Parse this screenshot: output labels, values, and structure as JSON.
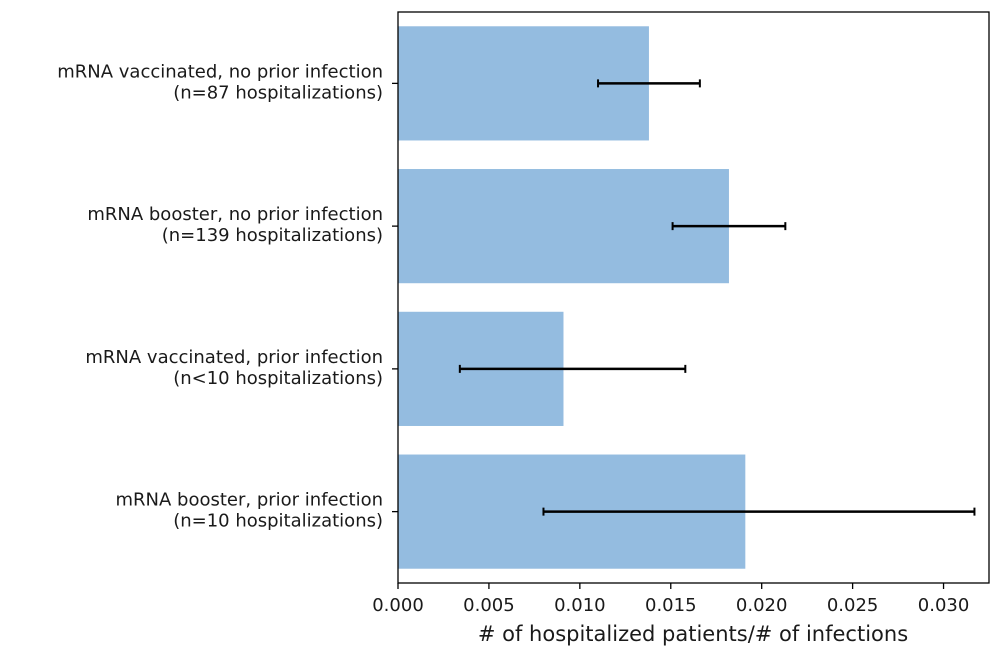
{
  "chart_data": {
    "type": "bar",
    "orientation": "horizontal",
    "title": "",
    "xlabel": "# of hospitalized patients/# of infections",
    "ylabel": "",
    "xlim": [
      0,
      0.0325
    ],
    "xticks": [
      "0.000",
      "0.005",
      "0.010",
      "0.015",
      "0.020",
      "0.025",
      "0.030"
    ],
    "xtick_values": [
      0,
      0.005,
      0.01,
      0.015,
      0.02,
      0.025,
      0.03
    ],
    "grid": false,
    "bar_color": "#94bce0",
    "errorbar_color": "#000000",
    "categories": [
      {
        "line1": "mRNA vaccinated, no prior infection",
        "line2": "(n=87 hospitalizations)"
      },
      {
        "line1": "mRNA booster, no prior infection",
        "line2": "(n=139 hospitalizations)"
      },
      {
        "line1": "mRNA vaccinated, prior infection",
        "line2": "(n<10 hospitalizations)"
      },
      {
        "line1": "mRNA booster, prior infection",
        "line2": "(n=10 hospitalizations)"
      }
    ],
    "values": [
      0.0138,
      0.0182,
      0.0091,
      0.0191
    ],
    "error_low": [
      0.011,
      0.0151,
      0.0034,
      0.008
    ],
    "error_high": [
      0.0166,
      0.0213,
      0.0158,
      0.0317
    ]
  }
}
